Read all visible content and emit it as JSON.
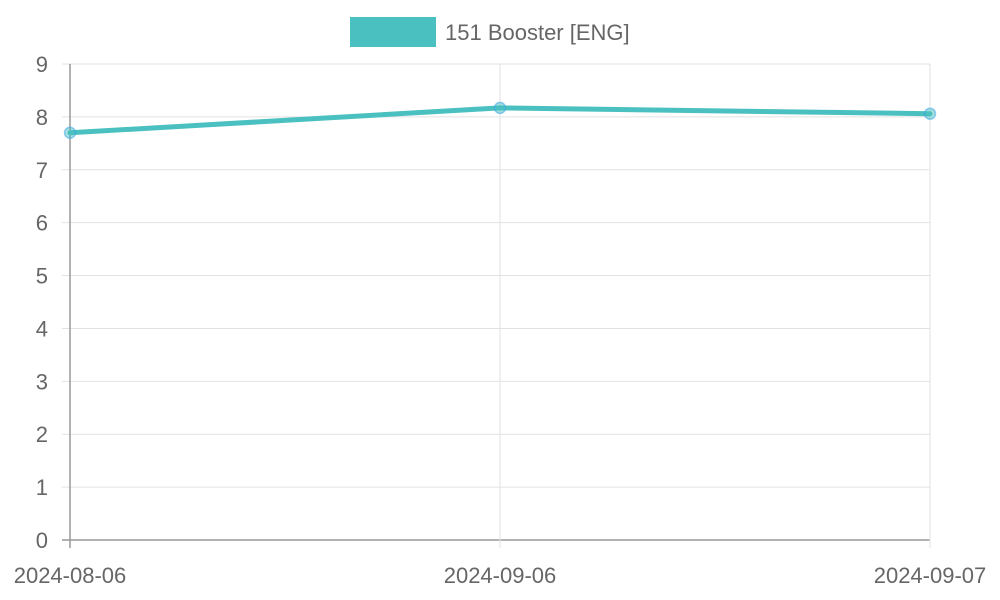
{
  "chart_data": {
    "type": "line",
    "x": [
      "2024-08-06",
      "2024-09-06",
      "2024-09-07"
    ],
    "series": [
      {
        "name": "151 Booster [ENG]",
        "values": [
          7.7,
          8.17,
          8.06
        ],
        "color": "#4bc0c0"
      }
    ],
    "ylim": [
      0,
      9
    ],
    "yticks": [
      "0",
      "1",
      "2",
      "3",
      "4",
      "5",
      "6",
      "7",
      "8",
      "9"
    ],
    "grid": true,
    "legend": "top"
  }
}
